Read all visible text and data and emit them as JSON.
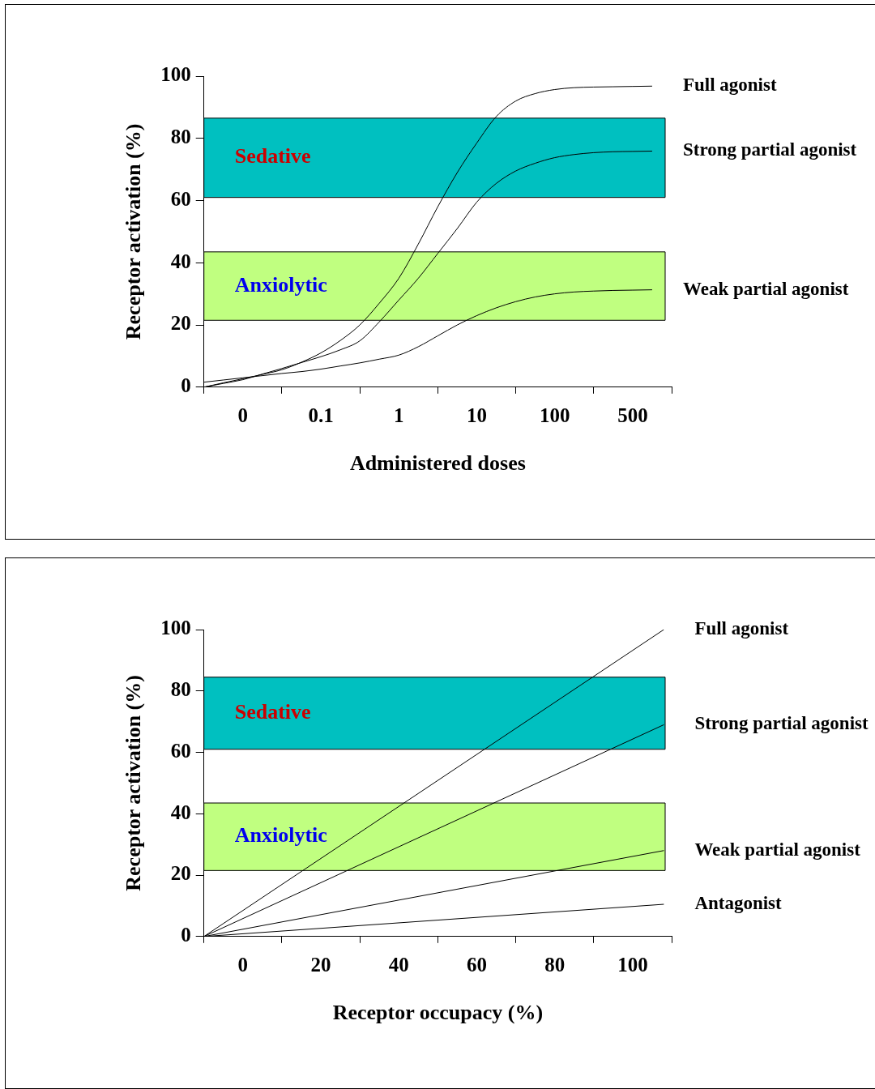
{
  "chart_data": [
    {
      "type": "line",
      "xlabel": "Administered doses",
      "ylabel": "Receptor activation (%)",
      "marker": "none",
      "line_style": "solid",
      "categories": [
        null,
        null,
        "0",
        null,
        null,
        null,
        "0.1",
        null,
        null,
        null,
        "1",
        null,
        null,
        null,
        "10",
        null,
        null,
        null,
        "100",
        null,
        null,
        null,
        "500",
        null,
        null
      ],
      "ylim": [
        0,
        100
      ],
      "yticks": [
        0,
        20,
        40,
        60,
        80,
        100
      ],
      "bands": [
        {
          "axis": "y",
          "from": 61,
          "to": 86.5,
          "label": "Sedative",
          "color": "#00c0c0"
        },
        {
          "axis": "y",
          "from": 21.5,
          "to": 43.5,
          "label": "Anxiolytic",
          "color": "#c0ff80"
        }
      ],
      "series": [
        {
          "name": "Full agonist",
          "color": "#000000",
          "values": [
            0,
            1.4,
            2.7,
            4.1,
            5.6,
            8,
            11,
            15,
            20,
            27,
            35,
            46,
            58,
            69,
            78.5,
            87,
            92,
            94.4,
            95.7,
            96.3,
            96.5,
            96.6,
            96.7,
            96.8,
            null
          ]
        },
        {
          "name": "Strong partial agonist",
          "color": "#000000",
          "values": [
            0,
            1.2,
            2.4,
            4.2,
            6,
            7.9,
            9.8,
            12,
            14.9,
            21,
            28,
            35,
            43,
            51,
            59.5,
            65.5,
            69.5,
            72,
            73.8,
            74.8,
            75.4,
            75.7,
            75.8,
            75.9,
            null
          ]
        },
        {
          "name": "Weak partial agonist",
          "color": "#000000",
          "values": [
            1.6,
            2.3,
            3,
            3.7,
            4.4,
            5,
            5.8,
            6.8,
            7.8,
            9,
            10.3,
            13,
            16.5,
            20,
            23,
            25.5,
            27.5,
            29,
            30,
            30.6,
            30.9,
            31.1,
            31.2,
            31.3,
            null
          ]
        }
      ]
    },
    {
      "type": "line",
      "xlabel": "Receptor occupacy (%)",
      "ylabel": "Receptor activation (%)",
      "marker": "none",
      "line_style": "solid",
      "xlim": [
        -10,
        110
      ],
      "xticks": [
        {
          "value": -10,
          "label": null
        },
        0,
        {
          "value": 10,
          "label": null
        },
        20,
        {
          "value": 30,
          "label": null
        },
        40,
        {
          "value": 50,
          "label": null
        },
        60,
        {
          "value": 70,
          "label": null
        },
        80,
        {
          "value": 90,
          "label": null
        },
        100,
        {
          "value": 110,
          "label": null
        }
      ],
      "ylim": [
        0,
        100
      ],
      "yticks": [
        0,
        20,
        40,
        60,
        80,
        100
      ],
      "bands": [
        {
          "axis": "y",
          "from": 61,
          "to": 84.5,
          "label": "Sedative",
          "color": "#00c0c0"
        },
        {
          "axis": "y",
          "from": 21.5,
          "to": 43.5,
          "label": "Anxiolytic",
          "color": "#c0ff80"
        }
      ],
      "series": [
        {
          "name": "Full agonist",
          "color": "#000000",
          "values": [
            0,
            100
          ]
        },
        {
          "name": "Strong partial agonist",
          "color": "#000000",
          "values": [
            0,
            69
          ]
        },
        {
          "name": "Weak partial agonist",
          "color": "#000000",
          "values": [
            0,
            28
          ]
        },
        {
          "name": "Antagonist",
          "color": "#000000",
          "values": [
            0,
            10.5
          ]
        }
      ],
      "x": [
        -10,
        108
      ]
    }
  ]
}
